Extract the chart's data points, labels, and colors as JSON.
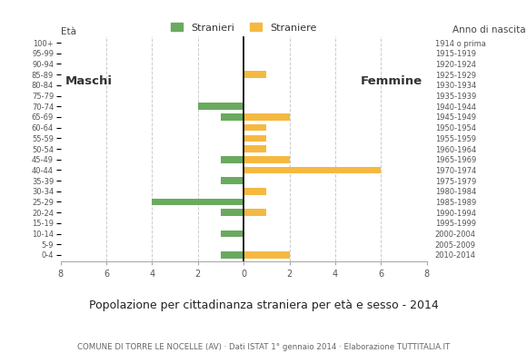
{
  "age_groups": [
    "0-4",
    "5-9",
    "10-14",
    "15-19",
    "20-24",
    "25-29",
    "30-34",
    "35-39",
    "40-44",
    "45-49",
    "50-54",
    "55-59",
    "60-64",
    "65-69",
    "70-74",
    "75-79",
    "80-84",
    "85-89",
    "90-94",
    "95-99",
    "100+"
  ],
  "birth_years": [
    "2010-2014",
    "2005-2009",
    "2000-2004",
    "1995-1999",
    "1990-1994",
    "1985-1989",
    "1980-1984",
    "1975-1979",
    "1970-1974",
    "1965-1969",
    "1960-1964",
    "1955-1959",
    "1950-1954",
    "1945-1949",
    "1940-1944",
    "1935-1939",
    "1930-1934",
    "1925-1929",
    "1920-1924",
    "1915-1919",
    "1914 o prima"
  ],
  "males": [
    1,
    0,
    1,
    0,
    1,
    4,
    0,
    1,
    0,
    1,
    0,
    0,
    0,
    1,
    2,
    0,
    0,
    0,
    0,
    0,
    0
  ],
  "females": [
    2,
    0,
    0,
    0,
    1,
    0,
    1,
    0,
    6,
    2,
    1,
    1,
    1,
    2,
    0,
    0,
    0,
    1,
    0,
    0,
    0
  ],
  "male_color": "#6aaa5f",
  "female_color": "#f5b942",
  "title": "Popolazione per cittadinanza straniera per età e sesso - 2014",
  "subtitle": "COMUNE DI TORRE LE NOCELLE (AV) · Dati ISTAT 1° gennaio 2014 · Elaborazione TUTTITALIA.IT",
  "label_eta": "Età",
  "label_anno": "Anno di nascita",
  "label_maschi": "Maschi",
  "label_femmine": "Femmine",
  "legend_stranieri": "Stranieri",
  "legend_straniere": "Straniere",
  "xlim": 8,
  "background_color": "#ffffff",
  "grid_color": "#cccccc",
  "spine_color": "#aaaaaa"
}
